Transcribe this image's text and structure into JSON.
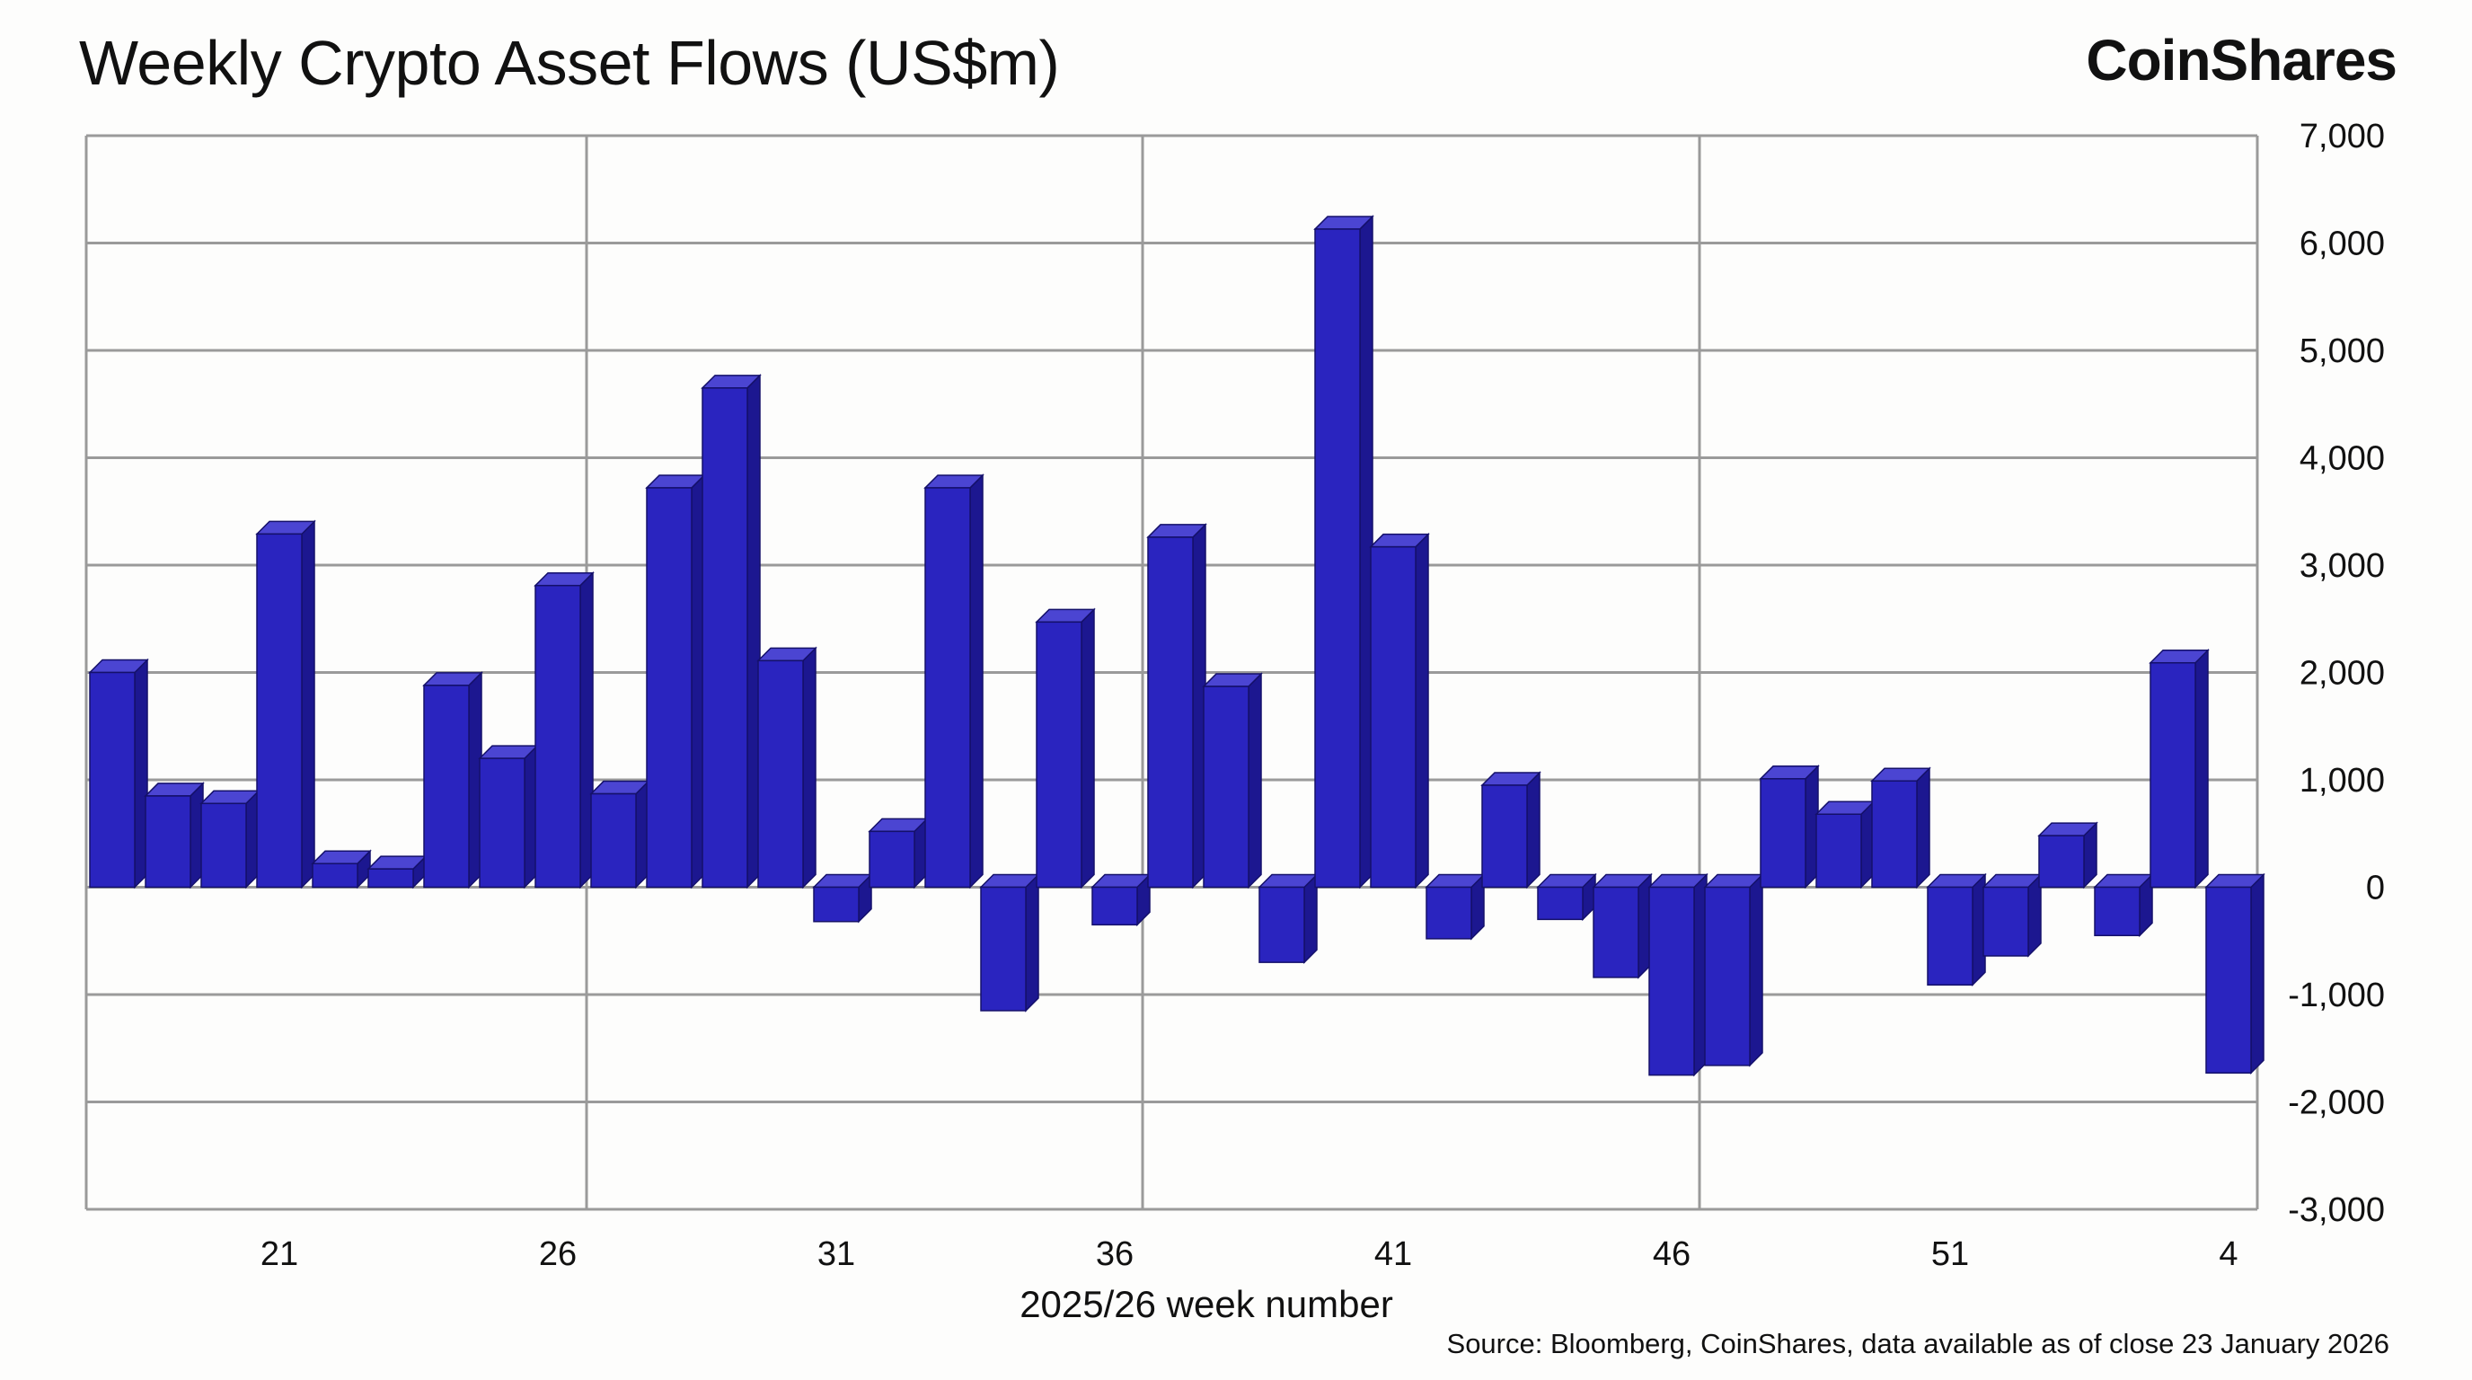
{
  "header": {
    "title": "Weekly Crypto Asset Flows (US$m)",
    "brand": "CoinShares"
  },
  "footer": {
    "source": "Source: Bloomberg, CoinShares, data available as of close 23 January 2026"
  },
  "colors": {
    "bar_front": "#2a24bf",
    "bar_side": "#1c1790",
    "bar_top": "#4b45d2",
    "grid": "#9a9a9a"
  },
  "chart_data": {
    "type": "bar",
    "title": "Weekly Crypto Asset Flows (US$m)",
    "xlabel": "2025/26 week number",
    "ylabel": "",
    "ylim": [
      -3000,
      7000
    ],
    "y_ticks": [
      "7,000",
      "6,000",
      "5,000",
      "4,000",
      "3,000",
      "2,000",
      "1,000",
      "0",
      "-1,000",
      "-2,000",
      "-3,000"
    ],
    "y_axis_side": "right",
    "grid": true,
    "style": "3d-bar",
    "categories": [
      "18",
      "19",
      "20",
      "21",
      "22",
      "23",
      "24",
      "25",
      "26",
      "27",
      "28",
      "29",
      "30",
      "31",
      "32",
      "33",
      "34",
      "35",
      "36",
      "37",
      "38",
      "39",
      "40",
      "41",
      "42",
      "43",
      "44",
      "45",
      "46",
      "47",
      "48",
      "49",
      "50",
      "51",
      "52",
      "1",
      "2",
      "3",
      "4"
    ],
    "x_tick_labels": [
      "21",
      "26",
      "31",
      "36",
      "41",
      "46",
      "51",
      "4"
    ],
    "values": [
      2000,
      850,
      780,
      3290,
      220,
      170,
      1880,
      1200,
      2810,
      870,
      3720,
      4650,
      2110,
      -320,
      520,
      3720,
      -1150,
      2470,
      -350,
      3260,
      1870,
      -700,
      6130,
      3170,
      -480,
      950,
      -300,
      -840,
      -1750,
      -1660,
      1010,
      680,
      990,
      -910,
      -640,
      480,
      -450,
      2090,
      -1730
    ]
  }
}
